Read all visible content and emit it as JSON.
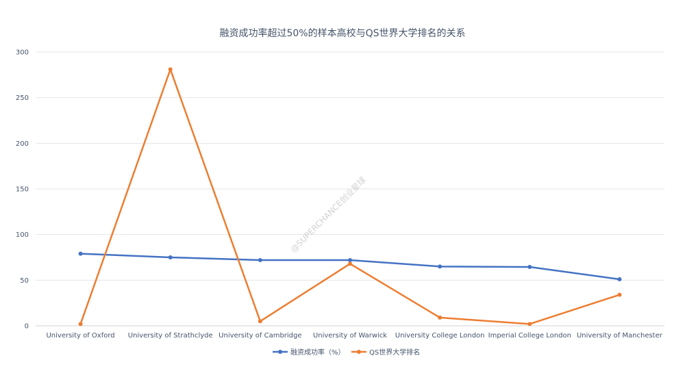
{
  "chart_data": {
    "type": "line",
    "title": "融资成功率超过50%的样本高校与QS世界大学排名的关系",
    "xlabel": "",
    "ylabel": "",
    "ylim": [
      0,
      300
    ],
    "yticks": [
      0,
      50,
      100,
      150,
      200,
      250,
      300
    ],
    "grid": true,
    "legend_position": "bottom",
    "categories": [
      "University of Oxford",
      "University of Strathclyde",
      "University of Cambridge",
      "University of Warwick",
      "University College London",
      "Imperial College London",
      "University of Manchester"
    ],
    "series": [
      {
        "name": "融资成功率（%）",
        "color": "#4472C4",
        "values": [
          79,
          75,
          72,
          72,
          65,
          64.5,
          51
        ]
      },
      {
        "name": "QS世界大学排名",
        "color": "#ED7D31",
        "values": [
          2,
          281,
          5,
          68,
          9,
          2,
          34
        ]
      }
    ]
  },
  "watermark": "@SUPERCHANCE创业星球"
}
